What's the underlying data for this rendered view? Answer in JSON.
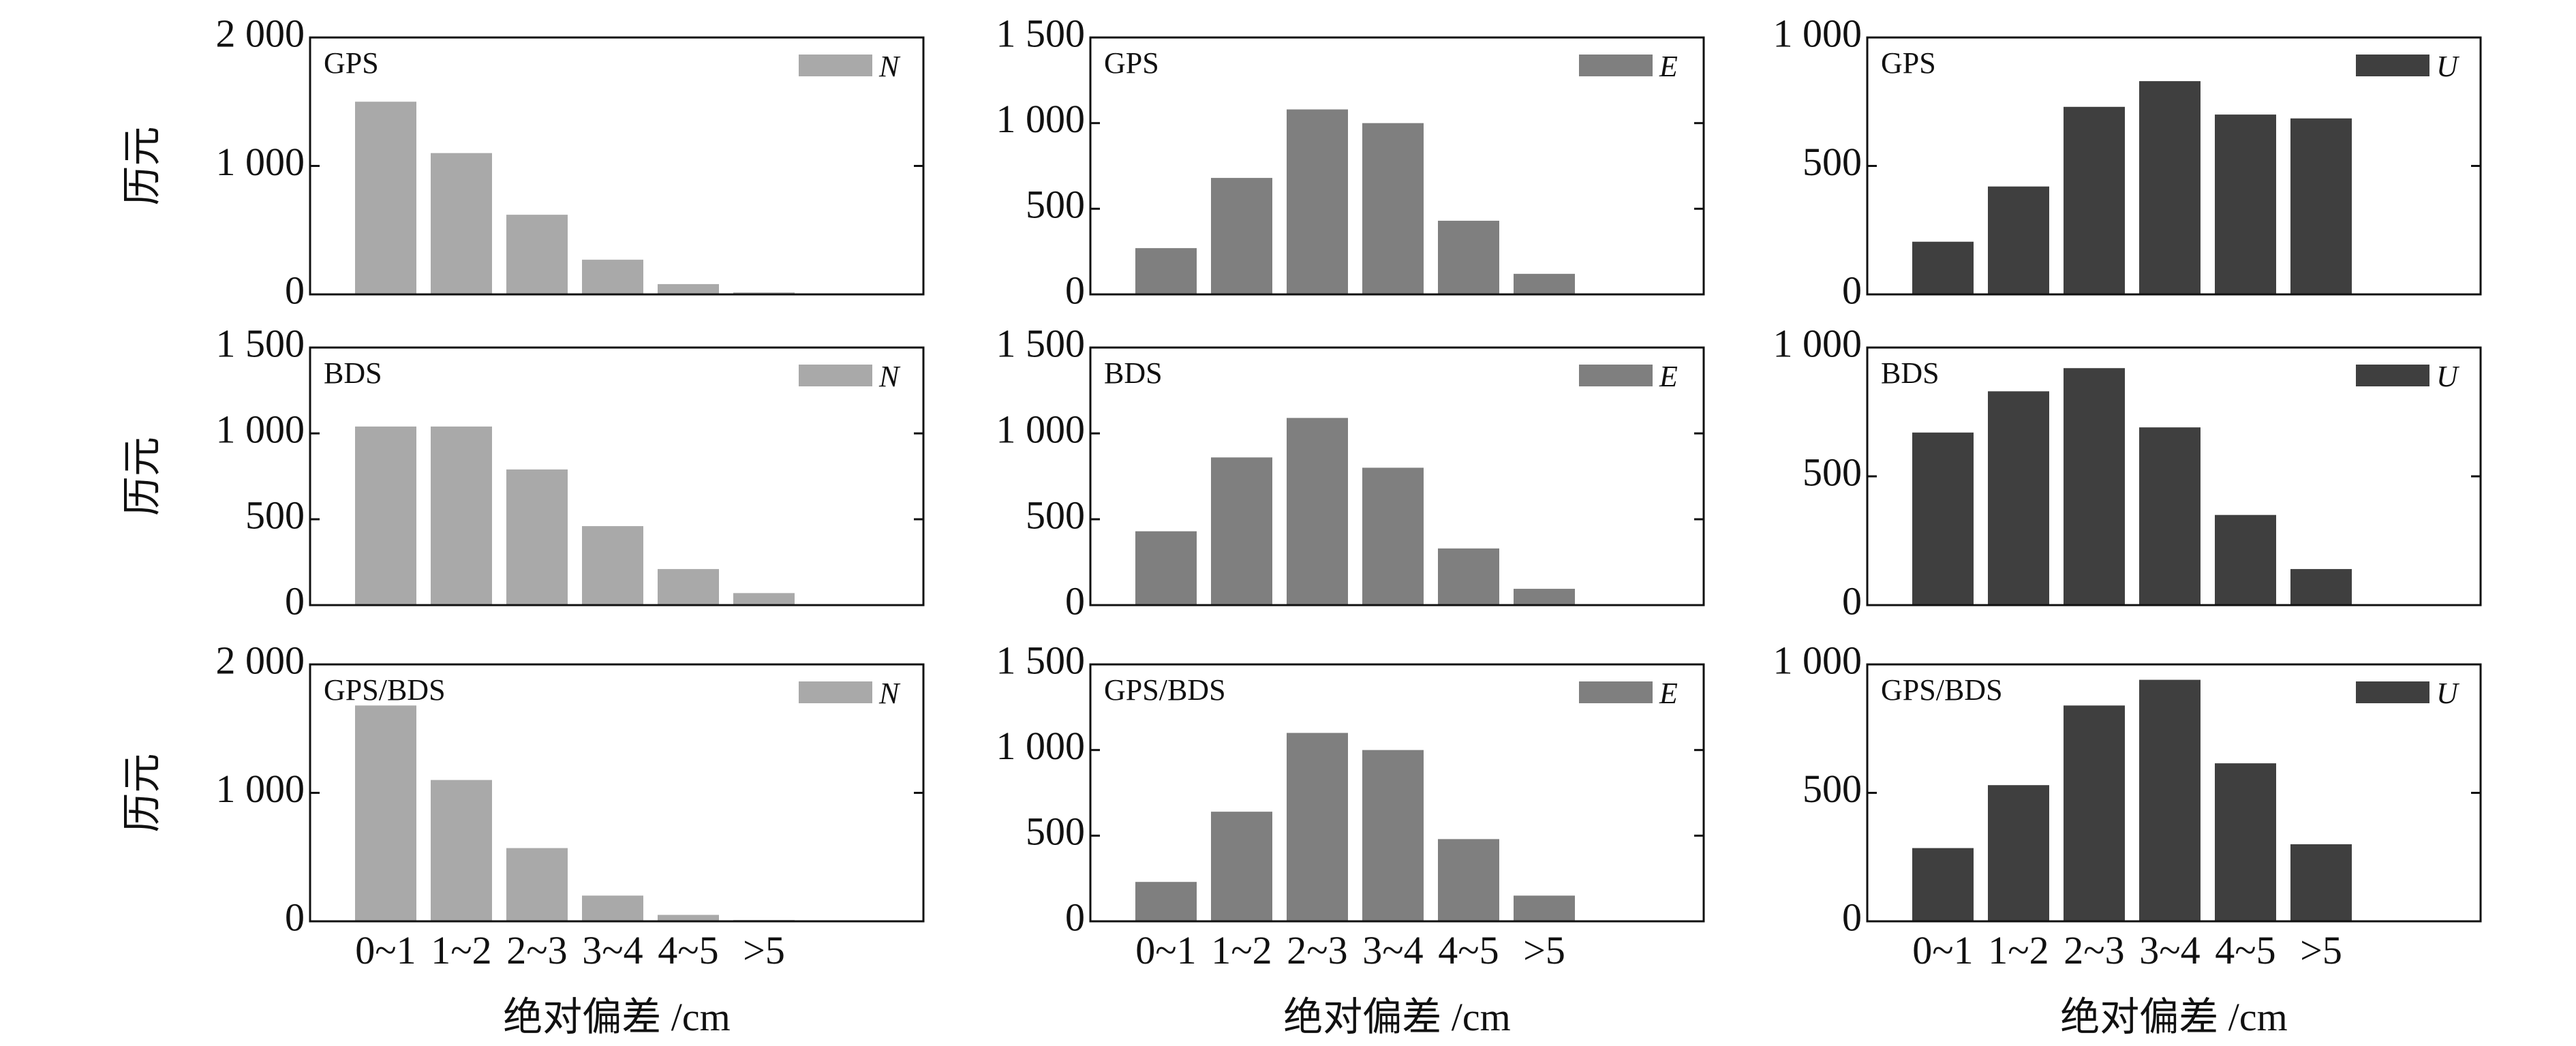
{
  "chart_data": {
    "type": "bar",
    "layout": "3x3 grid of bar charts",
    "categories": [
      "0~1",
      "1~2",
      "2~3",
      "3~4",
      "4~5",
      ">5"
    ],
    "ylabel": "历元",
    "xlabel": "绝对偏差 /cm",
    "legend_position": "top-right",
    "grid": false,
    "rows": [
      "GPS",
      "BDS",
      "GPS/BDS"
    ],
    "columns": [
      {
        "component": "N",
        "color": "#a9a9a9"
      },
      {
        "component": "E",
        "color": "#7f7f7f"
      },
      {
        "component": "U",
        "color": "#3f3f3f"
      }
    ],
    "panels": [
      {
        "label": "GPS",
        "series": "N",
        "color": "#a9a9a9",
        "ylim": [
          0,
          2000
        ],
        "yticks": [
          0,
          1000,
          2000
        ],
        "ytick_labels": [
          "0",
          "1 000",
          "2 000"
        ],
        "values": [
          1500,
          1100,
          620,
          270,
          80,
          15
        ]
      },
      {
        "label": "GPS",
        "series": "E",
        "color": "#7f7f7f",
        "ylim": [
          0,
          1500
        ],
        "yticks": [
          0,
          500,
          1000,
          1500
        ],
        "ytick_labels": [
          "0",
          "500",
          "1 000",
          "1 500"
        ],
        "values": [
          270,
          680,
          1080,
          1000,
          430,
          120
        ]
      },
      {
        "label": "GPS",
        "series": "U",
        "color": "#3f3f3f",
        "ylim": [
          0,
          1000
        ],
        "yticks": [
          0,
          500,
          1000
        ],
        "ytick_labels": [
          "0",
          "500",
          "1 000"
        ],
        "values": [
          205,
          420,
          730,
          830,
          700,
          685
        ]
      },
      {
        "label": "BDS",
        "series": "N",
        "color": "#a9a9a9",
        "ylim": [
          0,
          1500
        ],
        "yticks": [
          0,
          500,
          1000,
          1500
        ],
        "ytick_labels": [
          "0",
          "500",
          "1 000",
          "1 500"
        ],
        "values": [
          1040,
          1040,
          790,
          460,
          210,
          70
        ]
      },
      {
        "label": "BDS",
        "series": "E",
        "color": "#7f7f7f",
        "ylim": [
          0,
          1500
        ],
        "yticks": [
          0,
          500,
          1000,
          1500
        ],
        "ytick_labels": [
          "0",
          "500",
          "1 000",
          "1 500"
        ],
        "values": [
          430,
          860,
          1090,
          800,
          330,
          95
        ]
      },
      {
        "label": "BDS",
        "series": "U",
        "color": "#3f3f3f",
        "ylim": [
          0,
          1000
        ],
        "yticks": [
          0,
          500,
          1000
        ],
        "ytick_labels": [
          "0",
          "500",
          "1 000"
        ],
        "values": [
          670,
          830,
          920,
          690,
          350,
          140
        ]
      },
      {
        "label": "GPS/BDS",
        "series": "N",
        "color": "#a9a9a9",
        "ylim": [
          0,
          2000
        ],
        "yticks": [
          0,
          1000,
          2000
        ],
        "ytick_labels": [
          "0",
          "1 000",
          "2 000"
        ],
        "values": [
          1680,
          1100,
          570,
          200,
          50,
          10
        ]
      },
      {
        "label": "GPS/BDS",
        "series": "E",
        "color": "#7f7f7f",
        "ylim": [
          0,
          1500
        ],
        "yticks": [
          0,
          500,
          1000,
          1500
        ],
        "ytick_labels": [
          "0",
          "500",
          "1 000",
          "1 500"
        ],
        "values": [
          230,
          640,
          1100,
          1000,
          480,
          150
        ]
      },
      {
        "label": "GPS/BDS",
        "series": "U",
        "color": "#3f3f3f",
        "ylim": [
          0,
          1000
        ],
        "yticks": [
          0,
          500,
          1000
        ],
        "ytick_labels": [
          "0",
          "500",
          "1 000"
        ],
        "values": [
          285,
          530,
          840,
          940,
          615,
          300
        ]
      }
    ]
  }
}
